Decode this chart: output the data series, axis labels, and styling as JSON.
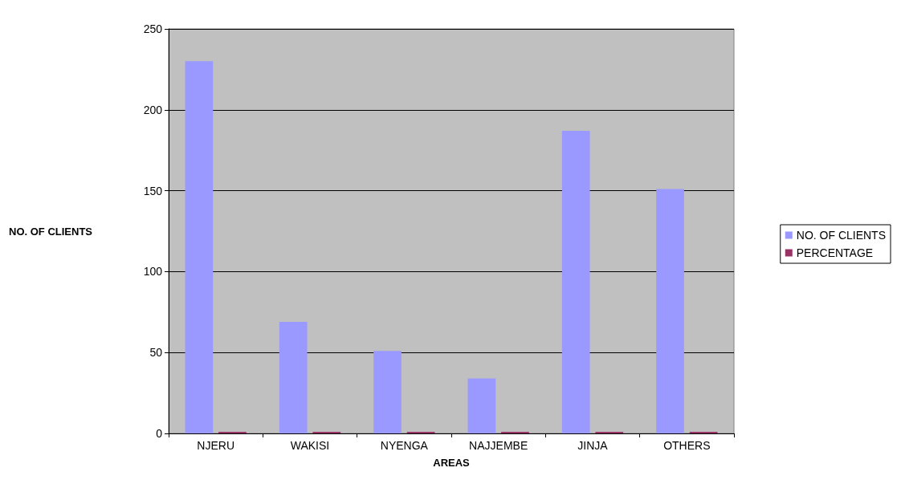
{
  "chart_data": {
    "type": "bar",
    "xlabel": "AREAS",
    "ylabel": "NO. OF CLIENTS",
    "categories": [
      "NJERU",
      "WAKISI",
      "NYENGA",
      "NAJJEMBE",
      "JINJA",
      "OTHERS"
    ],
    "series": [
      {
        "name": "NO. OF CLIENTS",
        "color": "#9999ff",
        "values": [
          230,
          69,
          51,
          34,
          187,
          151
        ]
      },
      {
        "name": "PERCENTAGE",
        "color": "#993366",
        "values": [
          1,
          1,
          1,
          1,
          1,
          1
        ]
      }
    ],
    "ylim": [
      0,
      250
    ],
    "yticks": [
      0,
      50,
      100,
      150,
      200,
      250
    ],
    "grid": "y",
    "legend": "right"
  }
}
